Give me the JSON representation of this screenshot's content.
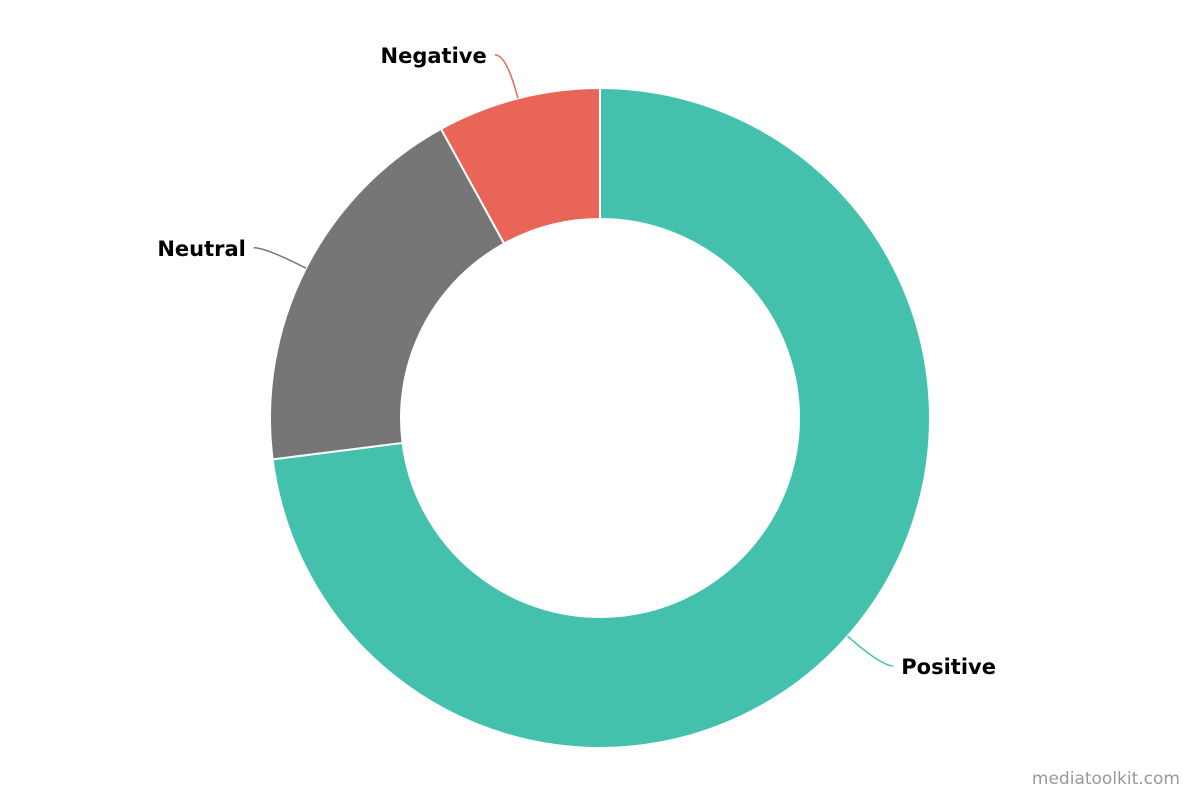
{
  "chart_data": {
    "type": "donut",
    "categories": [
      "Positive",
      "Neutral",
      "Negative"
    ],
    "values": [
      73,
      19,
      8
    ],
    "colors": [
      "#43c1ac",
      "#767676",
      "#e96558"
    ],
    "credit": "mediatoolkit.com"
  }
}
